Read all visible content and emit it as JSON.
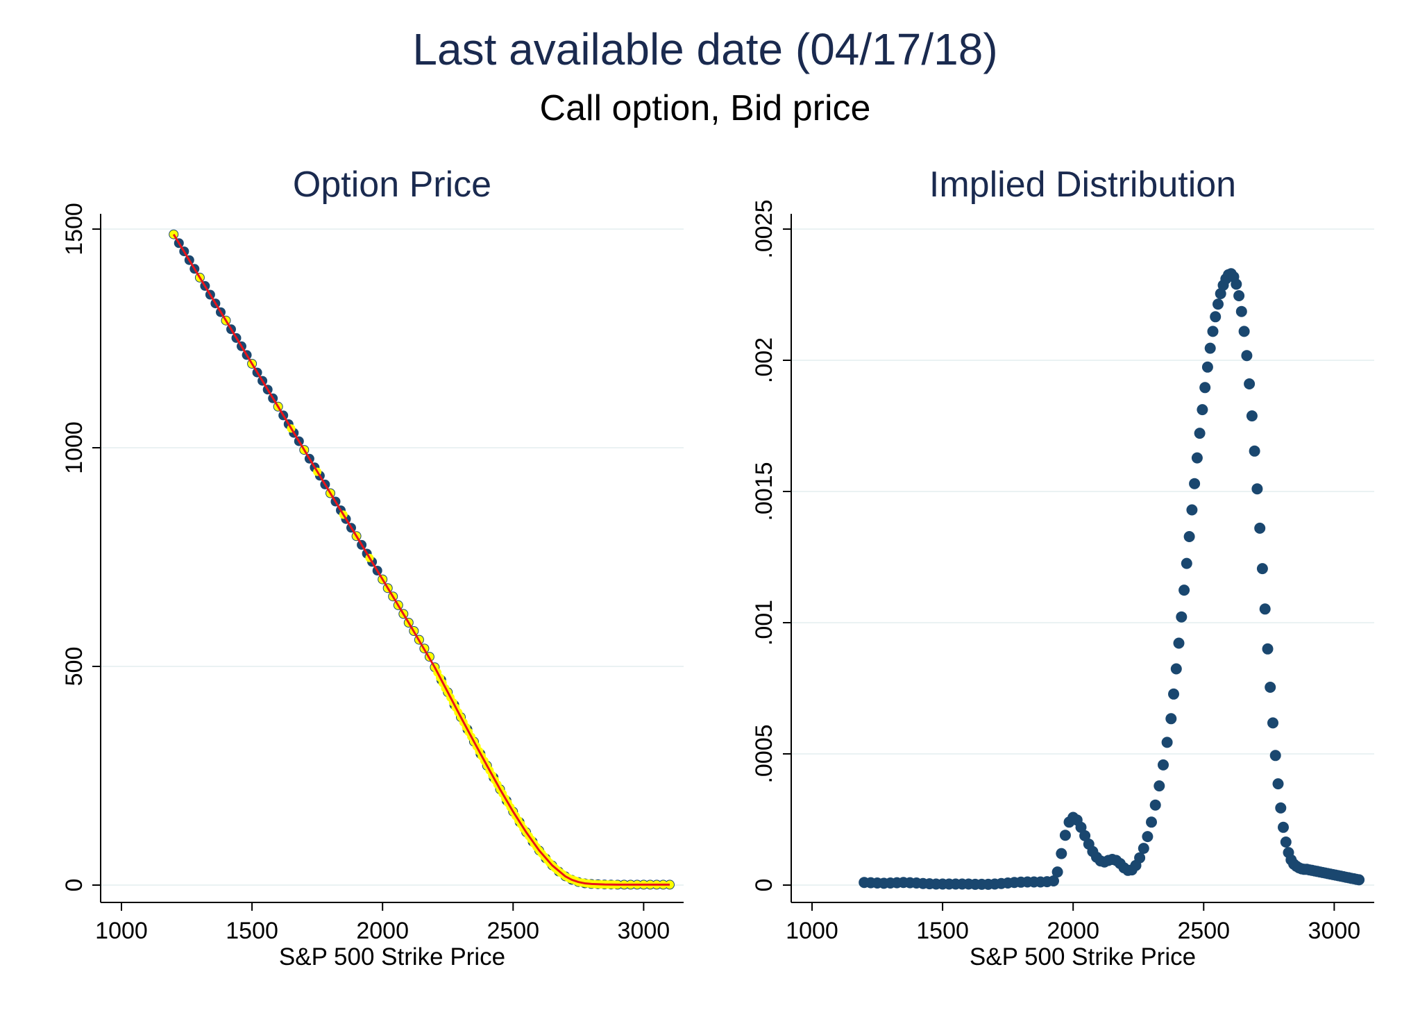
{
  "figure": {
    "title": "Last available date (04/17/18)",
    "subtitle": "Call option, Bid price",
    "colors": {
      "title": "#1a2a4f",
      "marker": "#1a476f",
      "marker_highlight": "#ffff00",
      "fit_line": "#e8141a",
      "grid": "#eaf2f3",
      "axis": "#000000"
    }
  },
  "chart_data": [
    {
      "type": "scatter",
      "title": "Option Price",
      "xlabel": "S&P 500 Strike Price",
      "ylabel": "",
      "xlim": [
        1000,
        3100
      ],
      "ylim": [
        0,
        1500
      ],
      "xticks": [
        1000,
        1500,
        2000,
        2500,
        3000
      ],
      "xtick_labels": [
        "1000",
        "1500",
        "2000",
        "2500",
        "3000"
      ],
      "yticks": [
        0,
        500,
        1000,
        1500
      ],
      "ytick_labels": [
        "0",
        "500",
        "1000",
        "1500"
      ],
      "grid": true,
      "legend": "none",
      "series": [
        {
          "style": "markers",
          "x": [
            1200,
            1220,
            1240,
            1260,
            1280,
            1300,
            1320,
            1340,
            1360,
            1380,
            1400,
            1420,
            1440,
            1460,
            1480,
            1500,
            1520,
            1540,
            1560,
            1580,
            1600,
            1620,
            1640,
            1660,
            1680,
            1700,
            1720,
            1740,
            1760,
            1780,
            1800,
            1820,
            1840,
            1860,
            1880,
            1900,
            1920,
            1940,
            1960,
            1980,
            2000,
            2020,
            2040,
            2060,
            2080,
            2100,
            2120,
            2140,
            2160,
            2180,
            2200,
            2225,
            2250,
            2275,
            2300,
            2325,
            2350,
            2375,
            2400,
            2425,
            2450,
            2475,
            2500,
            2525,
            2550,
            2575,
            2600,
            2625,
            2650,
            2675,
            2700,
            2725,
            2750,
            2775,
            2800,
            2825,
            2850,
            2875,
            2900,
            2925,
            2950,
            2975,
            3000,
            3025,
            3050,
            3075,
            3100
          ],
          "y": [
            1488,
            1468,
            1449,
            1429,
            1409,
            1389,
            1370,
            1350,
            1330,
            1310,
            1291,
            1271,
            1251,
            1232,
            1212,
            1192,
            1172,
            1153,
            1133,
            1113,
            1094,
            1074,
            1054,
            1034,
            1015,
            995,
            975,
            955,
            936,
            916,
            896,
            877,
            857,
            837,
            817,
            798,
            778,
            758,
            739,
            719,
            699,
            679,
            660,
            640,
            620,
            600,
            581,
            561,
            541,
            522,
            498,
            469,
            441,
            412,
            384,
            356,
            328,
            300,
            273,
            246,
            219,
            193,
            168,
            144,
            121,
            99,
            79,
            61,
            45,
            31,
            20,
            12,
            7,
            4,
            2.5,
            2,
            1.5,
            1.2,
            1,
            1,
            1,
            1,
            1,
            1,
            1,
            1,
            1
          ]
        },
        {
          "style": "highlighted-markers",
          "x": [
            1200,
            1300,
            1400,
            1500,
            1600,
            1650,
            1700,
            1750,
            1800,
            1850,
            1900,
            1950,
            2000,
            2020,
            2040,
            2060,
            2080,
            2100,
            2120,
            2140,
            2160,
            2180,
            2200,
            2210,
            2220,
            2230,
            2240,
            2250,
            2260,
            2270,
            2280,
            2290,
            2300,
            2310,
            2320,
            2330,
            2340,
            2350,
            2360,
            2370,
            2380,
            2390,
            2400,
            2410,
            2420,
            2430,
            2440,
            2450,
            2460,
            2470,
            2480,
            2490,
            2500,
            2510,
            2520,
            2530,
            2540,
            2550,
            2560,
            2570,
            2580,
            2590,
            2600,
            2610,
            2620,
            2630,
            2640,
            2650,
            2660,
            2670,
            2680,
            2690,
            2700,
            2710,
            2720,
            2730,
            2740,
            2750,
            2760,
            2770,
            2780,
            2790,
            2800,
            2810,
            2820,
            2830,
            2840,
            2850,
            2860,
            2870,
            2880,
            2890,
            2900,
            2925,
            2950,
            2975,
            3000,
            3025,
            3050,
            3075,
            3100
          ],
          "y": [
            1488,
            1389,
            1291,
            1192,
            1094,
            1044,
            995,
            945,
            896,
            847,
            798,
            748,
            699,
            679,
            660,
            640,
            620,
            600,
            581,
            561,
            541,
            522,
            498,
            486,
            474,
            462,
            450,
            441,
            429,
            418,
            406,
            395,
            384,
            372,
            361,
            350,
            339,
            328,
            317,
            306,
            295,
            284,
            273,
            262,
            251,
            240,
            230,
            219,
            209,
            198,
            188,
            178,
            168,
            158,
            148,
            139,
            129,
            121,
            112,
            104,
            95,
            87,
            79,
            72,
            65,
            58,
            51,
            45,
            39,
            34,
            29,
            25,
            20,
            17,
            14,
            12,
            10,
            7,
            6,
            5,
            4,
            3.5,
            2.5,
            2.2,
            2,
            1.8,
            1.6,
            1.5,
            1.4,
            1.3,
            1.2,
            1.1,
            1,
            1,
            1,
            1,
            1,
            1,
            1,
            1,
            1
          ]
        },
        {
          "style": "fit-line",
          "x": [
            1200,
            1300,
            1400,
            1500,
            1600,
            1700,
            1800,
            1900,
            2000,
            2100,
            2200,
            2250,
            2300,
            2350,
            2400,
            2450,
            2500,
            2550,
            2600,
            2650,
            2700,
            2725,
            2750,
            2775,
            2800,
            2825,
            2850,
            2875,
            2900,
            2950,
            3000,
            3050,
            3100
          ],
          "y": [
            1488,
            1389,
            1291,
            1192,
            1094,
            995,
            896,
            798,
            699,
            600,
            498,
            441,
            384,
            328,
            273,
            219,
            168,
            121,
            79,
            45,
            20,
            12,
            7,
            4,
            2.5,
            2,
            1.5,
            1.2,
            1,
            1,
            1,
            1,
            1
          ]
        }
      ]
    },
    {
      "type": "scatter",
      "title": "Implied Distribution",
      "xlabel": "S&P 500 Strike Price",
      "ylabel": "",
      "xlim": [
        1000,
        3100
      ],
      "ylim": [
        0,
        0.0025
      ],
      "xticks": [
        1000,
        1500,
        2000,
        2500,
        3000
      ],
      "xtick_labels": [
        "1000",
        "1500",
        "2000",
        "2500",
        "3000"
      ],
      "yticks": [
        0,
        0.0005,
        0.001,
        0.0015,
        0.002,
        0.0025
      ],
      "ytick_labels": [
        "0",
        ".0005",
        ".001",
        ".0015",
        ".002",
        ".0025"
      ],
      "grid": true,
      "legend": "none",
      "series": [
        {
          "style": "markers",
          "x": [
            1200,
            1225,
            1250,
            1275,
            1300,
            1325,
            1350,
            1375,
            1400,
            1425,
            1450,
            1475,
            1500,
            1525,
            1550,
            1575,
            1600,
            1625,
            1650,
            1675,
            1700,
            1725,
            1750,
            1775,
            1800,
            1825,
            1850,
            1875,
            1900,
            1925,
            1940,
            1955,
            1970,
            1985,
            2000,
            2015,
            2030,
            2045,
            2060,
            2075,
            2090,
            2105,
            2120,
            2135,
            2150,
            2165,
            2180,
            2195,
            2210,
            2225,
            2240,
            2255,
            2270,
            2285,
            2300,
            2315,
            2330,
            2345,
            2360,
            2375,
            2385,
            2395,
            2405,
            2415,
            2425,
            2435,
            2445,
            2455,
            2465,
            2475,
            2485,
            2495,
            2505,
            2515,
            2525,
            2535,
            2545,
            2555,
            2565,
            2575,
            2585,
            2595,
            2605,
            2615,
            2625,
            2635,
            2645,
            2655,
            2665,
            2675,
            2685,
            2695,
            2705,
            2715,
            2725,
            2735,
            2745,
            2755,
            2765,
            2775,
            2785,
            2795,
            2805,
            2815,
            2825,
            2835,
            2845,
            2855,
            2865,
            2875,
            2885,
            2895,
            2905,
            2915,
            2925,
            2935,
            2945,
            2955,
            2965,
            2975,
            2985,
            2995,
            3005,
            3015,
            3025,
            3035,
            3045,
            3055,
            3065,
            3075,
            3085,
            3095
          ],
          "y": [
            1e-05,
            9e-06,
            8e-06,
            7e-06,
            8e-06,
            9e-06,
            1e-05,
            9e-06,
            8e-06,
            6e-06,
            5e-06,
            4e-06,
            4e-06,
            4e-06,
            4e-06,
            4e-06,
            4e-06,
            3e-06,
            3e-06,
            3e-06,
            4e-06,
            6e-06,
            8e-06,
            1e-05,
            1.1e-05,
            1.2e-05,
            1.2e-05,
            1.2e-05,
            1.3e-05,
            1.6e-05,
            5e-05,
            0.00012,
            0.00019,
            0.00024,
            0.000258,
            0.000248,
            0.00022,
            0.000188,
            0.000156,
            0.000128,
            0.000106,
            9.2e-05,
            8.8e-05,
            9.4e-05,
            9.8e-05,
            9.4e-05,
            8.2e-05,
            6.6e-05,
            5.6e-05,
            5.8e-05,
            7.5e-05,
            0.000104,
            0.00014,
            0.000185,
            0.00024,
            0.000305,
            0.000378,
            0.000458,
            0.000544,
            0.000634,
            0.000728,
            0.000824,
            0.000922,
            0.001022,
            0.001124,
            0.001226,
            0.001328,
            0.00143,
            0.00153,
            0.001628,
            0.001722,
            0.001812,
            0.001896,
            0.001974,
            0.002046,
            0.00211,
            0.002166,
            0.002214,
            0.002254,
            0.002286,
            0.00231,
            0.002326,
            0.00233,
            0.002318,
            0.00229,
            0.002246,
            0.002186,
            0.00211,
            0.002018,
            0.00191,
            0.001788,
            0.001654,
            0.00151,
            0.00136,
            0.001206,
            0.001052,
            0.0009,
            0.000754,
            0.000618,
            0.000494,
            0.000386,
            0.000294,
            0.00022,
            0.000164,
            0.000124,
            9.6e-05,
            8e-05,
            7.2e-05,
            6.6e-05,
            6.2e-05,
            6e-05,
            6e-05,
            5.8e-05,
            5.6e-05,
            5.4e-05,
            5.2e-05,
            5e-05,
            4.8e-05,
            4.6e-05,
            4.4e-05,
            4.2e-05,
            4e-05,
            3.8e-05,
            3.6e-05,
            3.4e-05,
            3.2e-05,
            3e-05,
            2.8e-05,
            2.6e-05,
            2.4e-05,
            2.2e-05,
            2e-05
          ]
        }
      ]
    }
  ]
}
